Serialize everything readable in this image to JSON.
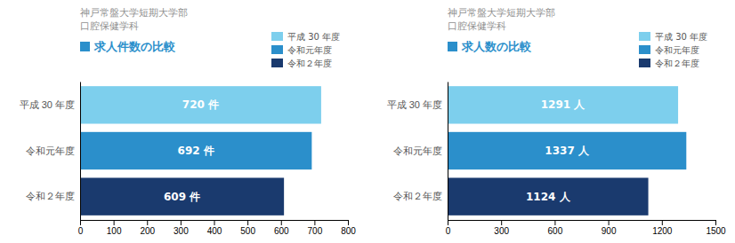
{
  "chart_data": [
    {
      "type": "bar",
      "orientation": "horizontal",
      "title": [
        "神戸常盤大学短期大学部",
        "口腔保健学科"
      ],
      "subtitle": "求人件数の比較",
      "categories": [
        "平成 30 年度",
        "令和元年度",
        "令和２年度"
      ],
      "values": [
        720,
        692,
        609
      ],
      "value_labels": [
        "720 件",
        "692 件",
        "609 件"
      ],
      "data_labels": true,
      "colors": [
        "#7dcfed",
        "#2b8fcb",
        "#1a3a6e"
      ],
      "xlim": [
        0,
        800
      ],
      "xticks": [
        0,
        100,
        200,
        300,
        400,
        500,
        600,
        700,
        800
      ],
      "grid": false,
      "legend": "top-right"
    },
    {
      "type": "bar",
      "orientation": "horizontal",
      "title": [
        "神戸常盤大学短期大学部",
        "口腔保健学科"
      ],
      "subtitle": "求人数の比較",
      "categories": [
        "平成 30 年度",
        "令和元年度",
        "令和２年度"
      ],
      "values": [
        1291,
        1337,
        1124
      ],
      "value_labels": [
        "1291 人",
        "1337 人",
        "1124 人"
      ],
      "data_labels": true,
      "colors": [
        "#7dcfed",
        "#2b8fcb",
        "#1a3a6e"
      ],
      "xlim": [
        0,
        1500
      ],
      "xticks": [
        0,
        300,
        600,
        900,
        1200,
        1500
      ],
      "grid": false,
      "legend": "top-right"
    }
  ]
}
